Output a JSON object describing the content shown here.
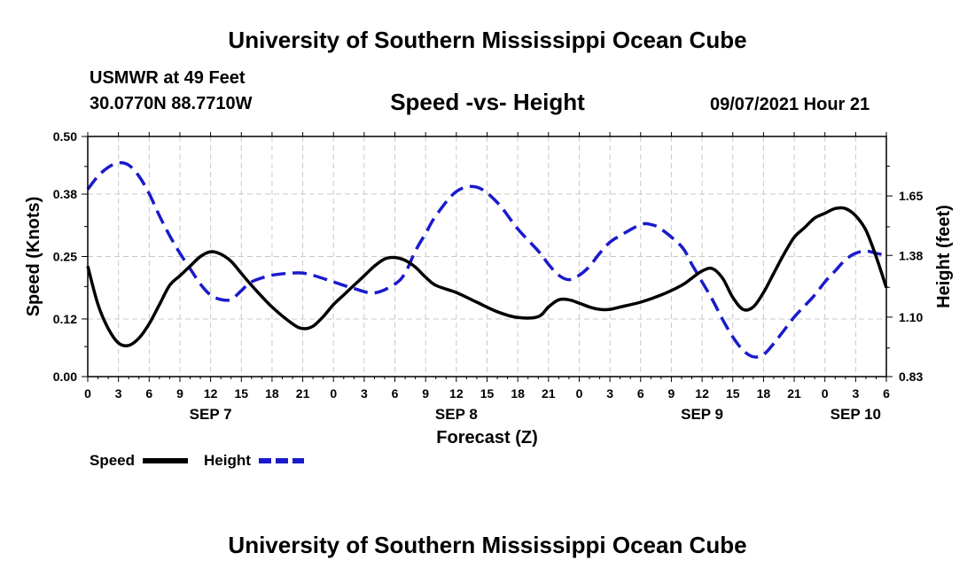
{
  "header": {
    "title_top": "University of Southern Mississippi Ocean Cube",
    "title_bottom": "University of Southern Mississippi Ocean Cube",
    "station": "USMWR at 49 Feet",
    "coords": "30.0770N  88.7710W",
    "subtitle": "Speed -vs- Height",
    "datetime": "09/07/2021 Hour 21"
  },
  "colors": {
    "speed": "#000000",
    "height": "#1a1acc",
    "grid": "#c8c8c8"
  },
  "chart_data": {
    "type": "line",
    "title": "Speed -vs- Height",
    "xlabel": "Forecast (Z)",
    "ylabel": "Speed (Knots)",
    "ylabel_right": "Height (feet)",
    "x_range_hours": [
      0,
      78
    ],
    "x_tick_labels": [
      "0",
      "3",
      "6",
      "9",
      "12",
      "15",
      "18",
      "21",
      "0",
      "3",
      "6",
      "9",
      "12",
      "15",
      "18",
      "21",
      "0",
      "3",
      "6",
      "9",
      "12",
      "15",
      "18",
      "21",
      "0",
      "3",
      "6"
    ],
    "date_labels": [
      {
        "label": "SEP 7",
        "hour": 12
      },
      {
        "label": "SEP 8",
        "hour": 36
      },
      {
        "label": "SEP 9",
        "hour": 60
      },
      {
        "label": "SEP 10",
        "hour": 75
      }
    ],
    "ylim_left": [
      0,
      0.5
    ],
    "yticks_left": [
      "0.00",
      "0.12",
      "0.25",
      "0.38",
      "0.50"
    ],
    "ylim_right": [
      0.83,
      1.92
    ],
    "yticks_right": [
      "0.83",
      "1.10",
      "1.38",
      "1.65"
    ],
    "yticks_right_values": [
      0.83,
      1.1,
      1.38,
      1.65
    ],
    "grid": true,
    "legend": "bottom-left",
    "series": [
      {
        "name": "Speed",
        "axis": "left",
        "style": "solid",
        "x": [
          0,
          1,
          2,
          3,
          4,
          5,
          6,
          7,
          8,
          9,
          10,
          11,
          12,
          13,
          14,
          15,
          16,
          18,
          20,
          21,
          22,
          23,
          24,
          25,
          26,
          27,
          28,
          29,
          30,
          31,
          32,
          33,
          34,
          36,
          38,
          40,
          42,
          44,
          45,
          46,
          47,
          48,
          49,
          50,
          51,
          52,
          54,
          56,
          58,
          59,
          60,
          61,
          62,
          63,
          64,
          65,
          66,
          67,
          68,
          69,
          70,
          71,
          72,
          73,
          74,
          75,
          76,
          77,
          78
        ],
        "values": [
          0.23,
          0.15,
          0.1,
          0.07,
          0.065,
          0.08,
          0.11,
          0.15,
          0.19,
          0.21,
          0.23,
          0.25,
          0.26,
          0.255,
          0.24,
          0.215,
          0.19,
          0.145,
          0.11,
          0.1,
          0.105,
          0.125,
          0.15,
          0.17,
          0.19,
          0.21,
          0.23,
          0.245,
          0.248,
          0.242,
          0.228,
          0.207,
          0.19,
          0.175,
          0.155,
          0.135,
          0.123,
          0.125,
          0.145,
          0.16,
          0.16,
          0.153,
          0.145,
          0.14,
          0.14,
          0.145,
          0.155,
          0.17,
          0.19,
          0.205,
          0.22,
          0.225,
          0.205,
          0.165,
          0.14,
          0.145,
          0.175,
          0.215,
          0.255,
          0.29,
          0.31,
          0.33,
          0.34,
          0.35,
          0.35,
          0.335,
          0.305,
          0.25,
          0.185
        ]
      },
      {
        "name": "Height",
        "axis": "right",
        "style": "dashed",
        "x": [
          0,
          1,
          2,
          3,
          4,
          5,
          6,
          7,
          8,
          9,
          10,
          11,
          12,
          13,
          14,
          15,
          16,
          18,
          20,
          21,
          22,
          24,
          26,
          28,
          30,
          31,
          32,
          33,
          34,
          36,
          38,
          40,
          42,
          44,
          45,
          46,
          47,
          48,
          49,
          50,
          51,
          52,
          54,
          55,
          56,
          58,
          59,
          60,
          61,
          62,
          63,
          64,
          65,
          66,
          67,
          68,
          69,
          70,
          71,
          72,
          73,
          74,
          75,
          76,
          77,
          78
        ],
        "values": [
          1.68,
          1.74,
          1.78,
          1.8,
          1.79,
          1.74,
          1.66,
          1.56,
          1.47,
          1.39,
          1.32,
          1.25,
          1.2,
          1.18,
          1.18,
          1.22,
          1.26,
          1.29,
          1.3,
          1.3,
          1.29,
          1.26,
          1.23,
          1.21,
          1.25,
          1.3,
          1.4,
          1.48,
          1.56,
          1.67,
          1.69,
          1.62,
          1.5,
          1.4,
          1.34,
          1.29,
          1.27,
          1.29,
          1.33,
          1.39,
          1.44,
          1.47,
          1.52,
          1.52,
          1.5,
          1.42,
          1.34,
          1.26,
          1.18,
          1.09,
          1.01,
          0.95,
          0.92,
          0.93,
          0.98,
          1.04,
          1.1,
          1.15,
          1.2,
          1.26,
          1.31,
          1.36,
          1.39,
          1.4,
          1.39,
          1.38
        ]
      }
    ]
  }
}
